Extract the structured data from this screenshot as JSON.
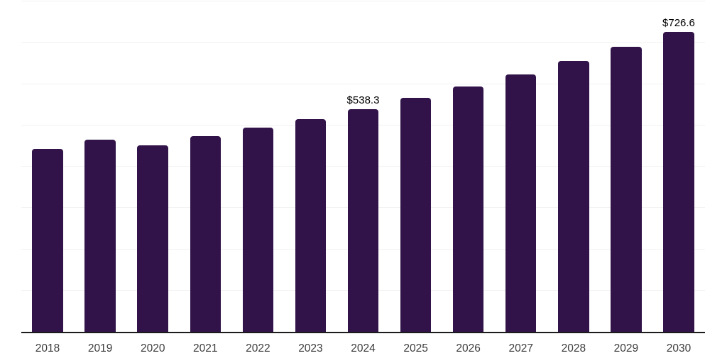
{
  "chart_style": {
    "background": "#ffffff",
    "bar_color": "#311349",
    "axis_line_color": "#1c1c1c",
    "gridline_color": "#f1f1f1",
    "data_label_color": "#000000",
    "tick_label_color": "#3d3d3d"
  },
  "chart_data": {
    "type": "bar",
    "title": "",
    "xlabel": "",
    "ylabel": "",
    "categories": [
      "2018",
      "2019",
      "2020",
      "2021",
      "2022",
      "2023",
      "2024",
      "2025",
      "2026",
      "2027",
      "2028",
      "2029",
      "2030"
    ],
    "values": [
      443.2,
      464.9,
      451.8,
      474.0,
      494.0,
      515.7,
      538.3,
      566.3,
      593.7,
      624.0,
      656.4,
      690.6,
      726.6
    ],
    "data_labels": {
      "2024": "$538.3",
      "2030": "$726.6"
    },
    "ylim": [
      0,
      800
    ],
    "grid_step": 100,
    "grid": true,
    "legend": false,
    "y_axis_labels_visible": false
  }
}
